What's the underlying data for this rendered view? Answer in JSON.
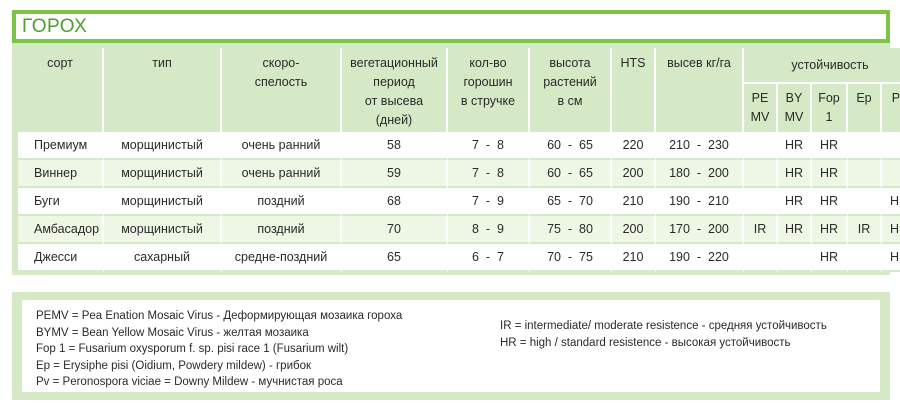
{
  "title": "ГОРОХ",
  "headers": {
    "sort": "сорт",
    "type": "тип",
    "speed_1": "скоро-",
    "speed_2": "спелость",
    "veg_1": "вегетационный",
    "veg_2": "период",
    "veg_3": "от высева",
    "veg_4": "(дней)",
    "peas_1": "кол-во",
    "peas_2": "горошин",
    "peas_3": "в стручке",
    "height_1": "высота",
    "height_2": "растений",
    "height_3": "в см",
    "hts": "HTS",
    "seeding": "высев кг/га",
    "resistance": "устойчивость",
    "pemv_1": "PE",
    "pemv_2": "MV",
    "bymv_1": "BY",
    "bymv_2": "MV",
    "fop_1": "Fop",
    "fop_2": "1",
    "ep": "Ep",
    "pv": "Pv"
  },
  "rows": [
    {
      "sort": "Премиум",
      "type": "морщинистый",
      "speed": "очень ранний",
      "veg": "58",
      "peas": "7  -  8",
      "height": "60  -  65",
      "hts": "220",
      "seeding": "210  -  230",
      "pemv": "",
      "bymv": "HR",
      "fop": "HR",
      "ep": "",
      "pv": ""
    },
    {
      "sort": "Виннер",
      "type": "морщинистый",
      "speed": "очень ранний",
      "veg": "59",
      "peas": "7  -  8",
      "height": "60  -  65",
      "hts": "200",
      "seeding": "180  -  200",
      "pemv": "",
      "bymv": "HR",
      "fop": "HR",
      "ep": "",
      "pv": ""
    },
    {
      "sort": "Буги",
      "type": "морщинистый",
      "speed": "поздний",
      "veg": "68",
      "peas": "7  -  9",
      "height": "65  -  70",
      "hts": "210",
      "seeding": "190  -  210",
      "pemv": "",
      "bymv": "HR",
      "fop": "HR",
      "ep": "",
      "pv": "HR"
    },
    {
      "sort": "Амбасадор",
      "type": "морщинистый",
      "speed": "поздний",
      "veg": "70",
      "peas": "8  -  9",
      "height": "75  -  80",
      "hts": "200",
      "seeding": "170  -  200",
      "pemv": "IR",
      "bymv": "HR",
      "fop": "HR",
      "ep": "IR",
      "pv": "HR"
    },
    {
      "sort": "Джесси",
      "type": "сахарный",
      "speed": "средне-поздний",
      "veg": "65",
      "peas": "6  -  7",
      "height": "70  -  75",
      "hts": "210",
      "seeding": "190  -  220",
      "pemv": "",
      "bymv": "",
      "fop": "HR",
      "ep": "",
      "pv": "HR"
    }
  ],
  "legend": {
    "left": [
      "PEMV = Pea Enation Mosaic Virus - Деформирующая мозаика гороха",
      "BYMV = Bean Yellow Mosaic Virus - желтая мозаика",
      "Fop 1 = Fusarium oxysporum f. sp. pisi race 1 (Fusarium wilt)",
      "Ep = Erysiphe pisi (Oidium, Powdery mildew) - грибок",
      "Pv = Peronospora viciae = Downy Mildew - мучнистая роса"
    ],
    "right": [
      "IR = intermediate/ moderate resistence - средняя устойчивость",
      "HR = high / standard resistence - высокая устойчивость"
    ]
  },
  "colors": {
    "accent_green": "#7cc544",
    "panel_green": "#d6e9c6",
    "title_green": "#4aa02c"
  }
}
